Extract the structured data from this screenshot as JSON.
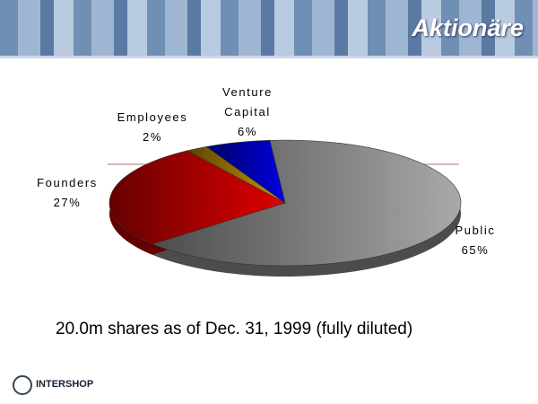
{
  "chart_data": {
    "type": "pie",
    "title": "Aktionäre",
    "subtitle": "20.0m shares as of Dec. 31, 1999 (fully diluted)",
    "categories": [
      "Public",
      "Founders",
      "Employees",
      "Venture Capital"
    ],
    "values": [
      65,
      27,
      2,
      6
    ],
    "value_labels": [
      "65%",
      "27%",
      "2%",
      "6%"
    ],
    "colors": [
      "#a9a9a9",
      "#e00000",
      "#c89a00",
      "#0000e0"
    ]
  },
  "logo": "INTERSHOP"
}
